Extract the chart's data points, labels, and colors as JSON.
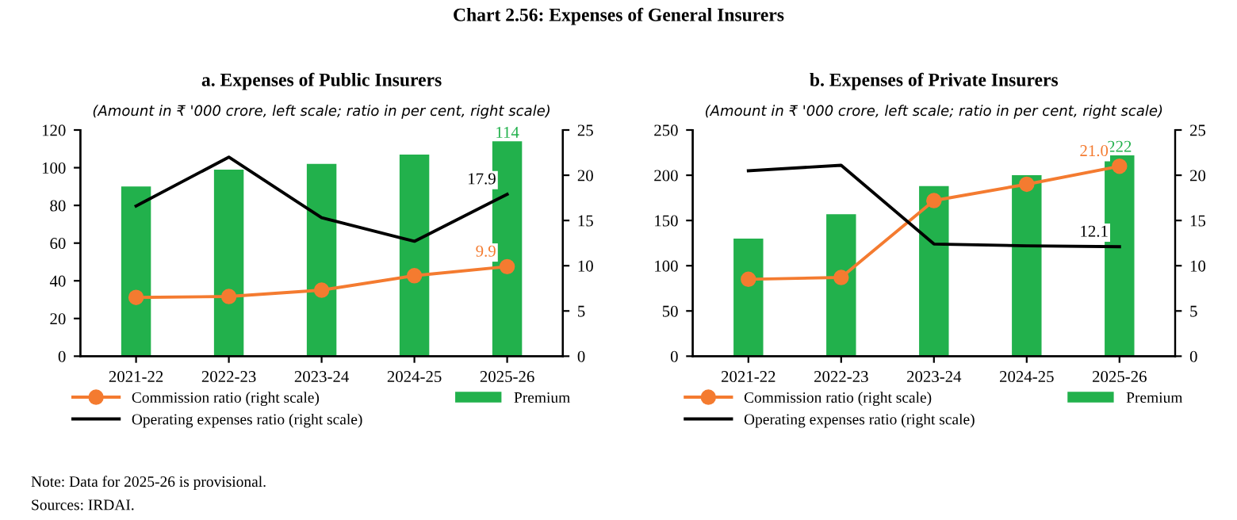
{
  "chart_data": [
    {
      "type": "other",
      "title": "Chart 2.56: Expenses of General Insurers",
      "annotations": [
        "Note: Data for 2025-26 is provisional.",
        "Sources: IRDAI."
      ]
    },
    {
      "type": "bar",
      "title": "a. Expenses of Public Insurers",
      "subtitle": "(Amount in ₹ '000 crore, left scale; ratio in per cent, right scale)",
      "categories": [
        "2021-22",
        "2022-23",
        "2023-24",
        "2024-25",
        "2025-26"
      ],
      "series": [
        {
          "name": "Commission ratio (right scale)",
          "type": "line",
          "axis": "y2",
          "marker": "circle",
          "color": "#f47b30",
          "values": [
            6.5,
            6.6,
            7.3,
            8.9,
            9.9
          ],
          "value_labels": [
            null,
            null,
            null,
            null,
            "9.9"
          ]
        },
        {
          "name": "Operating expenses ratio (right scale)",
          "type": "line",
          "axis": "y2",
          "marker": "none",
          "color": "#000000",
          "values": [
            16.6,
            22.0,
            15.3,
            12.7,
            17.9
          ],
          "value_labels": [
            null,
            null,
            null,
            null,
            "17.9"
          ]
        },
        {
          "name": "Premium",
          "type": "bar",
          "color": "#22b14c",
          "values": [
            90,
            99,
            102,
            107,
            114
          ],
          "value_labels": [
            null,
            null,
            null,
            null,
            "114"
          ]
        }
      ],
      "ylim": [
        0,
        120
      ],
      "yticks": [
        0,
        20,
        40,
        60,
        80,
        100,
        120
      ],
      "y2lim": [
        0,
        25
      ],
      "y2ticks": [
        0,
        5,
        10,
        15,
        20,
        25
      ],
      "grid": false,
      "legend": "bottom"
    },
    {
      "type": "bar",
      "title": "b. Expenses of Private Insurers",
      "subtitle": "(Amount in ₹ '000 crore, left scale; ratio in per cent, right scale)",
      "categories": [
        "2021-22",
        "2022-23",
        "2023-24",
        "2024-25",
        "2025-26"
      ],
      "series": [
        {
          "name": "Commission ratio (right scale)",
          "type": "line",
          "axis": "y2",
          "marker": "circle",
          "color": "#f47b30",
          "values": [
            8.5,
            8.7,
            17.2,
            19.0,
            21.0
          ],
          "value_labels": [
            null,
            null,
            null,
            null,
            "21.0"
          ]
        },
        {
          "name": "Operating expenses ratio (right scale)",
          "type": "line",
          "axis": "y2",
          "marker": "none",
          "color": "#000000",
          "values": [
            20.5,
            21.1,
            12.4,
            12.2,
            12.1
          ],
          "value_labels": [
            null,
            null,
            null,
            null,
            "12.1"
          ]
        },
        {
          "name": "Premium",
          "type": "bar",
          "color": "#22b14c",
          "values": [
            130,
            157,
            188,
            200,
            222
          ],
          "value_labels": [
            null,
            null,
            null,
            null,
            "222"
          ]
        }
      ],
      "ylim": [
        0,
        250
      ],
      "yticks": [
        0,
        50,
        100,
        150,
        200,
        250
      ],
      "y2lim": [
        0,
        25
      ],
      "y2ticks": [
        0,
        5,
        10,
        15,
        20,
        25
      ],
      "grid": false,
      "legend": "bottom"
    }
  ]
}
